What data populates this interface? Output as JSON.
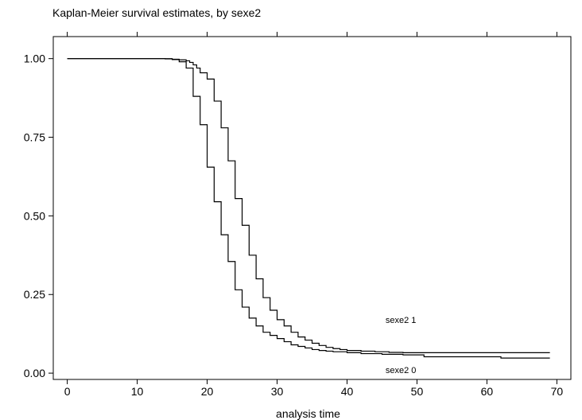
{
  "chart_data": {
    "type": "line",
    "title": "Kaplan-Meier survival estimates, by sexe2",
    "xlabel": "analysis time",
    "ylabel": "",
    "xlim": [
      -2,
      72
    ],
    "ylim": [
      -0.02,
      1.07
    ],
    "x_ticks": [
      0,
      10,
      20,
      30,
      40,
      50,
      60,
      70
    ],
    "y_ticks": [
      0.0,
      0.25,
      0.5,
      0.75,
      1.0
    ],
    "x_tick_labels": [
      "0",
      "10",
      "20",
      "30",
      "40",
      "50",
      "60",
      "70"
    ],
    "y_tick_labels": [
      "0.00",
      "0.25",
      "0.50",
      "0.75",
      "1.00"
    ],
    "step": true,
    "series": [
      {
        "name": "sexe2 1",
        "x": [
          0,
          15,
          16,
          17,
          17.5,
          18,
          18.5,
          19,
          20,
          21,
          22,
          23,
          24,
          25,
          26,
          27,
          28,
          29,
          30,
          31,
          32,
          33,
          34,
          35,
          36,
          37,
          38,
          39,
          40,
          42,
          44,
          46,
          48,
          69
        ],
        "values": [
          1.0,
          0.998,
          0.996,
          0.993,
          0.988,
          0.98,
          0.97,
          0.955,
          0.935,
          0.865,
          0.78,
          0.675,
          0.555,
          0.47,
          0.375,
          0.3,
          0.24,
          0.2,
          0.17,
          0.15,
          0.13,
          0.115,
          0.105,
          0.095,
          0.088,
          0.082,
          0.078,
          0.075,
          0.072,
          0.07,
          0.068,
          0.066,
          0.065,
          0.065
        ],
        "label_x": 45.5,
        "label_y": 0.16
      },
      {
        "name": "sexe2 0",
        "x": [
          0,
          14,
          15,
          16,
          17,
          18,
          19,
          20,
          21,
          22,
          23,
          24,
          25,
          26,
          27,
          28,
          29,
          30,
          31,
          32,
          33,
          34,
          35,
          36,
          37,
          38,
          40,
          42,
          45,
          48,
          51,
          62,
          69
        ],
        "values": [
          1.0,
          0.999,
          0.997,
          0.99,
          0.97,
          0.88,
          0.79,
          0.655,
          0.545,
          0.44,
          0.355,
          0.265,
          0.21,
          0.175,
          0.15,
          0.13,
          0.12,
          0.11,
          0.1,
          0.09,
          0.085,
          0.08,
          0.075,
          0.072,
          0.07,
          0.068,
          0.065,
          0.062,
          0.06,
          0.058,
          0.052,
          0.048,
          0.048
        ],
        "label_x": 45.5,
        "label_y": 0.0
      }
    ]
  }
}
